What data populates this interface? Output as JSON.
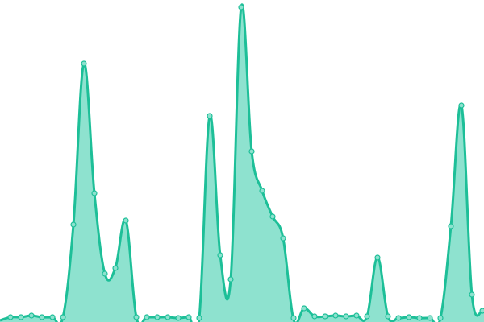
{
  "chart_data": {
    "type": "area",
    "title": "",
    "xlabel": "",
    "ylabel": "",
    "x": [
      0,
      1,
      2,
      3,
      4,
      5,
      6,
      7,
      8,
      9,
      10,
      11,
      12,
      13,
      14,
      15,
      16,
      17,
      18,
      19,
      20,
      21,
      22,
      23,
      24,
      25,
      26,
      27,
      28,
      29,
      30,
      31,
      32,
      33,
      34,
      35,
      36,
      37,
      38,
      39,
      40,
      41,
      42,
      43,
      44,
      45,
      46
    ],
    "values": [
      0,
      4,
      4,
      6,
      4,
      4,
      4,
      119,
      319,
      158,
      58,
      65,
      124,
      4,
      4,
      4,
      4,
      3,
      4,
      3,
      254,
      81,
      51,
      389,
      210,
      161,
      129,
      102,
      1,
      15,
      5,
      5,
      6,
      5,
      6,
      5,
      78,
      5,
      3,
      4,
      3,
      3,
      3,
      117,
      267,
      32,
      12
    ],
    "ylim": [
      0,
      398
    ],
    "grid": false,
    "axes_visible": false,
    "smooth": true,
    "markers": true,
    "colors": {
      "line": "#1dbf98",
      "fill": "#8ee2cf",
      "marker_fill": "#8ee2cf"
    }
  }
}
